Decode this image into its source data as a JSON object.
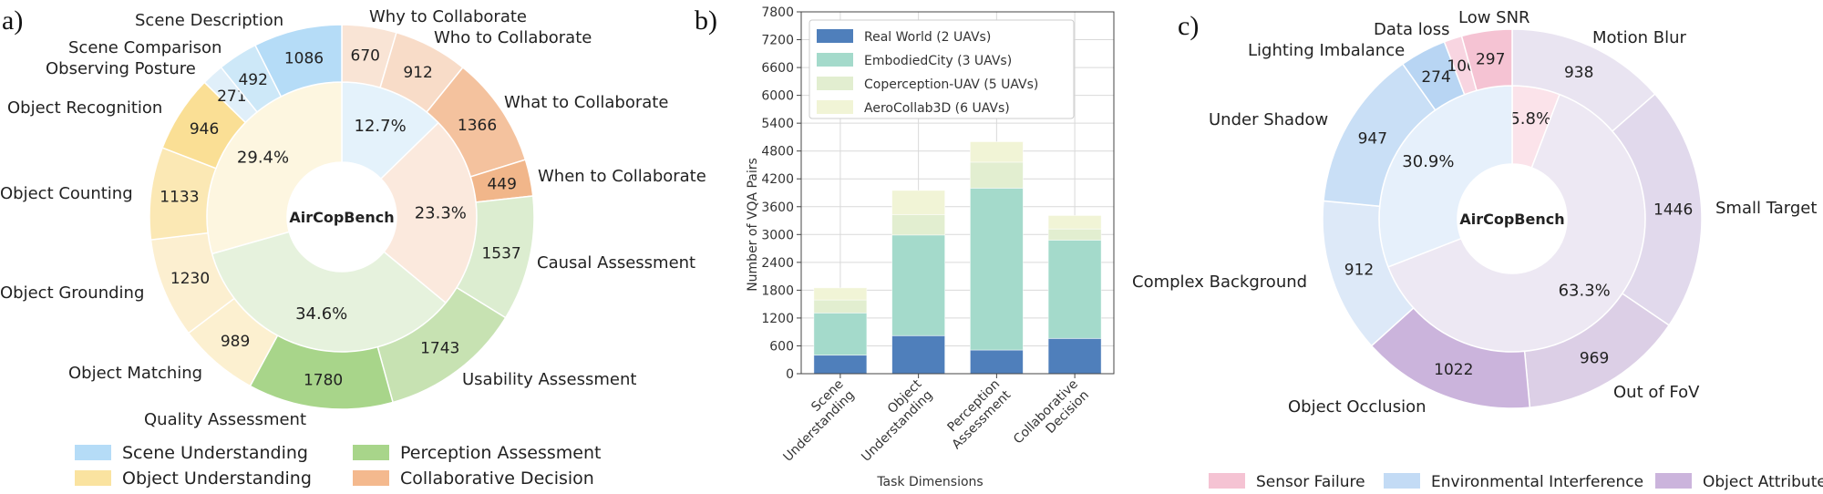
{
  "panel_labels": {
    "a": "a)",
    "b": "b)",
    "c": "c)"
  },
  "chart_data": [
    {
      "type": "pie",
      "variant": "nested-donut",
      "center_label": "AirCopBench",
      "inner": [
        {
          "name": "Scene Understanding",
          "value": 12.7,
          "label": "12.7%",
          "color": "#e4f2fb"
        },
        {
          "name": "Collaborative Decision",
          "value": 23.3,
          "label": "23.3%",
          "color": "#fbe9dd"
        },
        {
          "name": "Perception Assessment",
          "value": 34.6,
          "label": "34.6%",
          "color": "#e6f2dd"
        },
        {
          "name": "Object Understanding",
          "value": 29.4,
          "label": "29.4%",
          "color": "#fdf6e0"
        }
      ],
      "outer": [
        {
          "name": "Why to Collaborate",
          "value": 670,
          "color": "#f9e4d5"
        },
        {
          "name": "Who to Collaborate",
          "value": 912,
          "color": "#f8dcc8"
        },
        {
          "name": "What to Collaborate",
          "value": 1366,
          "color": "#f4c29e"
        },
        {
          "name": "When to Collaborate",
          "value": 449,
          "color": "#f1b68a"
        },
        {
          "name": "Causal Assessment",
          "value": 1537,
          "color": "#dcedd0"
        },
        {
          "name": "Usability Assessment",
          "value": 1743,
          "color": "#c7e2b2"
        },
        {
          "name": "Quality Assessment",
          "value": 1780,
          "color": "#a8d58a"
        },
        {
          "name": "Object Matching",
          "value": 989,
          "color": "#fcf0d0"
        },
        {
          "name": "Object Grounding",
          "value": 1230,
          "color": "#fcefd0"
        },
        {
          "name": "Object Counting",
          "value": 1133,
          "color": "#fbe8b4"
        },
        {
          "name": "Object Recognition",
          "value": 946,
          "color": "#fadf95"
        },
        {
          "name": "Observing Posture",
          "value": 271,
          "color": "#e0eff9"
        },
        {
          "name": "Scene Comparison",
          "value": 492,
          "color": "#cde8f8"
        },
        {
          "name": "Scene Description",
          "value": 1086,
          "color": "#b5dcf7"
        }
      ],
      "legend": [
        {
          "name": "Scene Understanding",
          "color": "#b5dcf7"
        },
        {
          "name": "Perception Assessment",
          "color": "#a8d58a"
        },
        {
          "name": "Object Understanding",
          "color": "#fae3a0"
        },
        {
          "name": "Collaborative Decision",
          "color": "#f4b98e"
        }
      ]
    },
    {
      "type": "bar",
      "variant": "stacked",
      "categories": [
        "Scene\nUnderstanding",
        "Object\nUnderstanding",
        "Perception\nAssessment",
        "Collaborative\nDecision"
      ],
      "series": [
        {
          "name": "Real World (2 UAVs)",
          "values": [
            400,
            820,
            510,
            760
          ],
          "color": "#4f7fbb"
        },
        {
          "name": "EmbodiedCity (3 UAVs)",
          "values": [
            910,
            2170,
            3490,
            2120
          ],
          "color": "#a4dacb"
        },
        {
          "name": "Coperception-UAV (5 UAVs)",
          "values": [
            280,
            440,
            560,
            240
          ],
          "color": "#e2eed0"
        },
        {
          "name": "AeroCollab3D (6 UAVs)",
          "values": [
            260,
            520,
            440,
            290
          ],
          "color": "#f1f4d6"
        }
      ],
      "xlabel": "Task Dimensions",
      "ylabel": "Number of VQA Pairs",
      "ylim": [
        0,
        7800
      ],
      "yticks": [
        0,
        600,
        1200,
        1800,
        2400,
        3000,
        3600,
        4200,
        4800,
        5400,
        6000,
        6600,
        7200,
        7800
      ],
      "grid": true,
      "legend_position": "top-left"
    },
    {
      "type": "pie",
      "variant": "nested-donut",
      "center_label": "AirCopBench",
      "inner": [
        {
          "name": "Sensor Failure",
          "value": 5.8,
          "label": "5.8%",
          "color": "#fbe3ea"
        },
        {
          "name": "Object Attribute",
          "value": 63.3,
          "label": "63.3%",
          "color": "#ede8f3"
        },
        {
          "name": "Environmental Interference",
          "value": 30.9,
          "label": "30.9%",
          "color": "#e6f0fb"
        }
      ],
      "outer": [
        {
          "name": "Motion Blur",
          "value": 938,
          "color": "#e9e4f1"
        },
        {
          "name": "Small Target",
          "value": 1446,
          "color": "#e1d9ec"
        },
        {
          "name": "Out of FoV",
          "value": 969,
          "color": "#dccfe6"
        },
        {
          "name": "Object Occlusion",
          "value": 1022,
          "color": "#cbb4dc"
        },
        {
          "name": "Complex Background",
          "value": 912,
          "color": "#dde9f8"
        },
        {
          "name": "Under Shadow",
          "value": 947,
          "color": "#c9dff6"
        },
        {
          "name": "Lighting Imbalance",
          "value": 274,
          "color": "#b8d5f3"
        },
        {
          "name": "Data loss",
          "value": 106,
          "color": "#f8d5e1"
        },
        {
          "name": "Low SNR",
          "value": 297,
          "color": "#f5c3d3"
        }
      ],
      "legend": [
        {
          "name": "Sensor Failure",
          "color": "#f5c3d3"
        },
        {
          "name": "Environmental Interference",
          "color": "#c3dbf5"
        },
        {
          "name": "Object Attribute",
          "color": "#cbb4dc"
        }
      ]
    }
  ]
}
